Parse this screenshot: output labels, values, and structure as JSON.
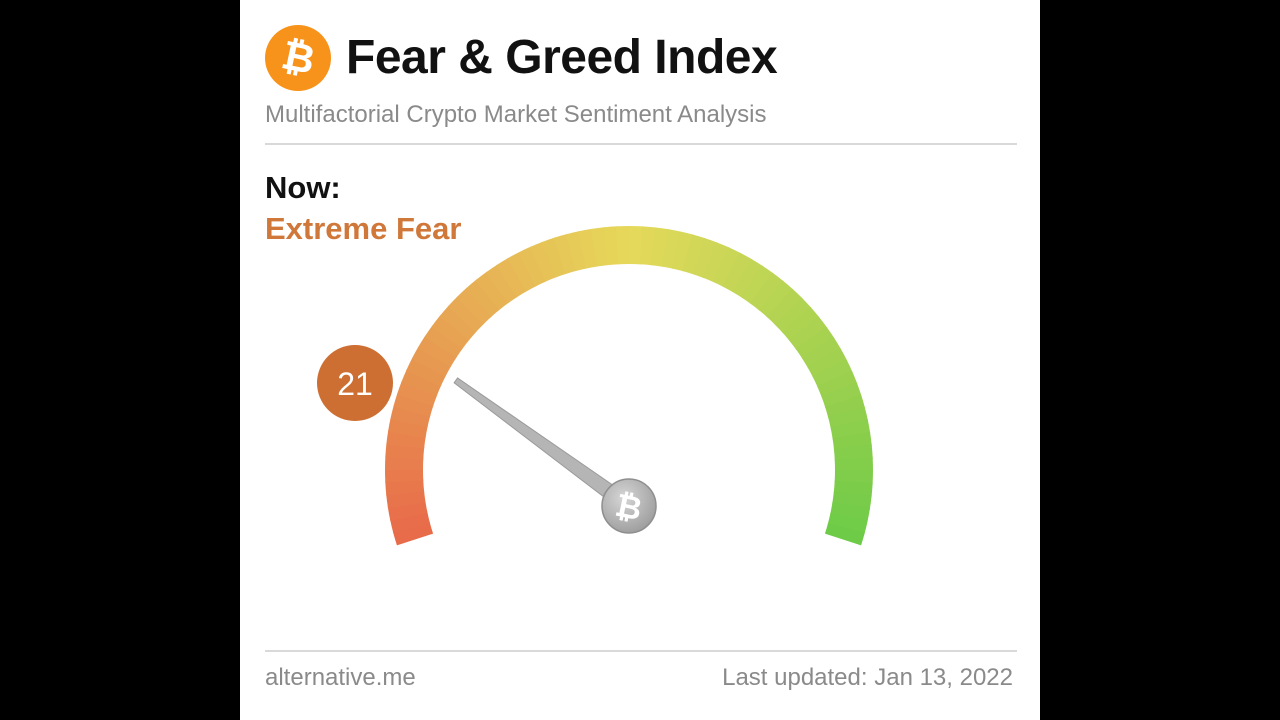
{
  "header": {
    "logo_symbol": "₿",
    "logo_icon": "bitcoin-icon",
    "title": "Fear & Greed Index",
    "subtitle": "Multifactorial Crypto Market Sentiment Analysis"
  },
  "status": {
    "now_label": "Now:",
    "classification": "Extreme Fear"
  },
  "gauge": {
    "value": 21,
    "value_label": "21",
    "min": 0,
    "max": 100,
    "center_symbol": "₿",
    "needle_icon": "bitcoin-icon"
  },
  "footer": {
    "source": "alternative.me",
    "last_updated": "Last updated: Jan 13, 2022"
  },
  "colors": {
    "brand": "#f7931a",
    "fear_accent": "#d0773a",
    "badge": "#cd6f33",
    "gauge_start": "#e8694a",
    "gauge_mid": "#e6d95a",
    "gauge_end": "#6ccb47",
    "needle": "#b5b5b5"
  }
}
